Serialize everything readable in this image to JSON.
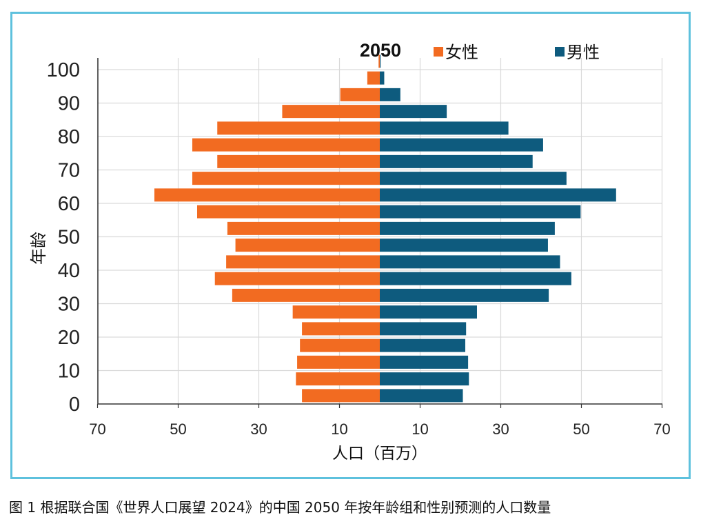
{
  "chart_data": {
    "type": "bar",
    "orientation": "horizontal-population-pyramid",
    "title": "2050",
    "xlabel": "人口（百万）",
    "ylabel": "年龄",
    "age_groups": [
      "0",
      "5",
      "10",
      "15",
      "20",
      "25",
      "30",
      "35",
      "40",
      "45",
      "50",
      "55",
      "60",
      "65",
      "70",
      "75",
      "80",
      "85",
      "90",
      "95",
      "100"
    ],
    "y_tick_labels": [
      "0",
      "10",
      "20",
      "30",
      "40",
      "50",
      "60",
      "70",
      "80",
      "90",
      "100"
    ],
    "x_tick_labels": [
      "70",
      "50",
      "30",
      "10",
      "10",
      "30",
      "50",
      "70"
    ],
    "xlim": [
      -70,
      70
    ],
    "grid": true,
    "legend_position": "top",
    "series": [
      {
        "name": "女性",
        "color": "#f26b21",
        "values": [
          19.3,
          20.8,
          20.5,
          19.8,
          19.3,
          21.6,
          36.6,
          40.9,
          38.1,
          35.8,
          37.8,
          45.3,
          55.9,
          46.5,
          40.3,
          46.5,
          40.3,
          24.2,
          9.8,
          3.1,
          0.3
        ]
      },
      {
        "name": "男性",
        "color": "#0e5b7e",
        "values": [
          20.6,
          22.1,
          21.9,
          21.2,
          21.4,
          24.1,
          41.9,
          47.5,
          44.7,
          41.7,
          43.4,
          49.8,
          58.6,
          46.3,
          37.9,
          40.5,
          31.9,
          16.6,
          5.1,
          1.1,
          0.2
        ]
      }
    ]
  },
  "caption": "图 1 根据联合国《世界人口展望 2024》的中国 2050 年按年龄组和性别预测的人口数量"
}
